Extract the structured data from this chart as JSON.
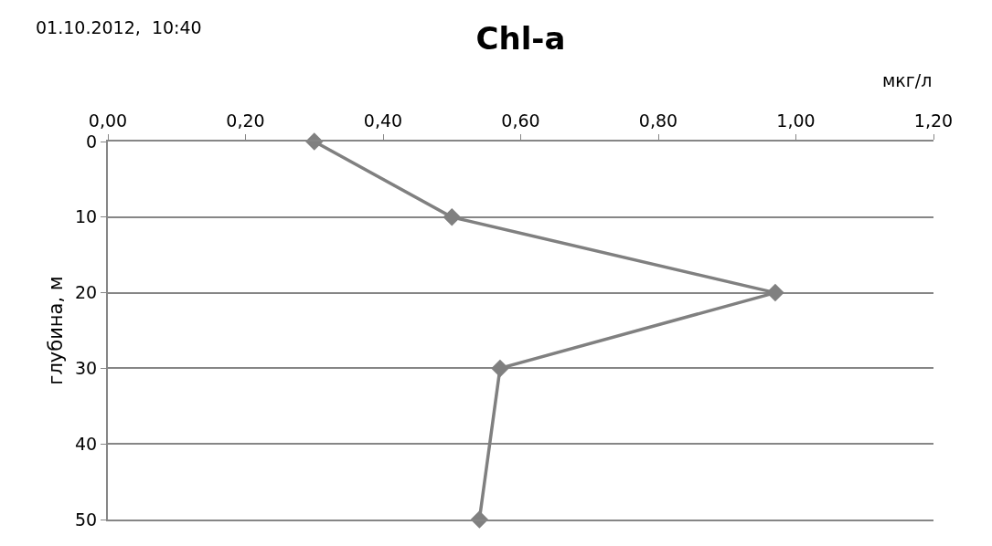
{
  "chart_data": {
    "type": "line",
    "title": "Chl-a",
    "xlabel": "мкг/л",
    "ylabel": "глубина, м",
    "annotations": [
      "01.10.2012,  10:40"
    ],
    "orientation": "horizontal",
    "x": [
      0,
      10,
      20,
      30,
      50
    ],
    "series": [
      {
        "color": "#808080",
        "values": [
          0.3,
          0.5,
          0.97,
          0.57,
          0.54
        ]
      }
    ],
    "xlim": [
      0,
      1.2
    ],
    "xticks": [
      {
        "value": 0,
        "label": "0,00"
      },
      {
        "value": 0.2,
        "label": "0,20"
      },
      {
        "value": 0.4,
        "label": "0,40"
      },
      {
        "value": 0.6,
        "label": "0,60"
      },
      {
        "value": 0.8,
        "label": "0,80"
      },
      {
        "value": 1.0,
        "label": "1,00"
      },
      {
        "value": 1.2,
        "label": "1,20"
      }
    ],
    "ylim": [
      50,
      0
    ],
    "yticks": [
      0,
      10,
      20,
      30,
      40,
      50
    ],
    "grid": "y",
    "marker": "diamond",
    "line_style": "solid"
  }
}
